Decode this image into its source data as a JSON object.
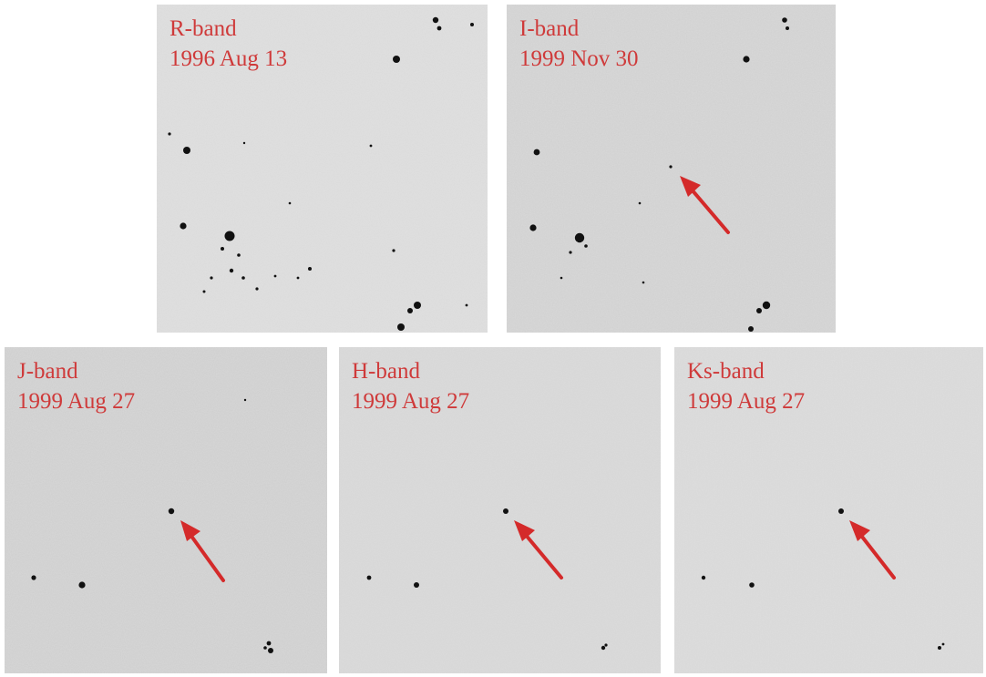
{
  "accent_color": "#cf3a3a",
  "panels": [
    {
      "id": "r",
      "band": "R-band",
      "date": "1996 Aug 13",
      "has_arrow": false
    },
    {
      "id": "i",
      "band": "I-band",
      "date": "1999 Nov 30",
      "has_arrow": true
    },
    {
      "id": "j",
      "band": "J-band",
      "date": "1999 Aug 27",
      "has_arrow": true
    },
    {
      "id": "h",
      "band": "H-band",
      "date": "1999 Aug 27",
      "has_arrow": true
    },
    {
      "id": "ks",
      "band": "Ks-band",
      "date": "1999 Aug 27",
      "has_arrow": true
    }
  ]
}
